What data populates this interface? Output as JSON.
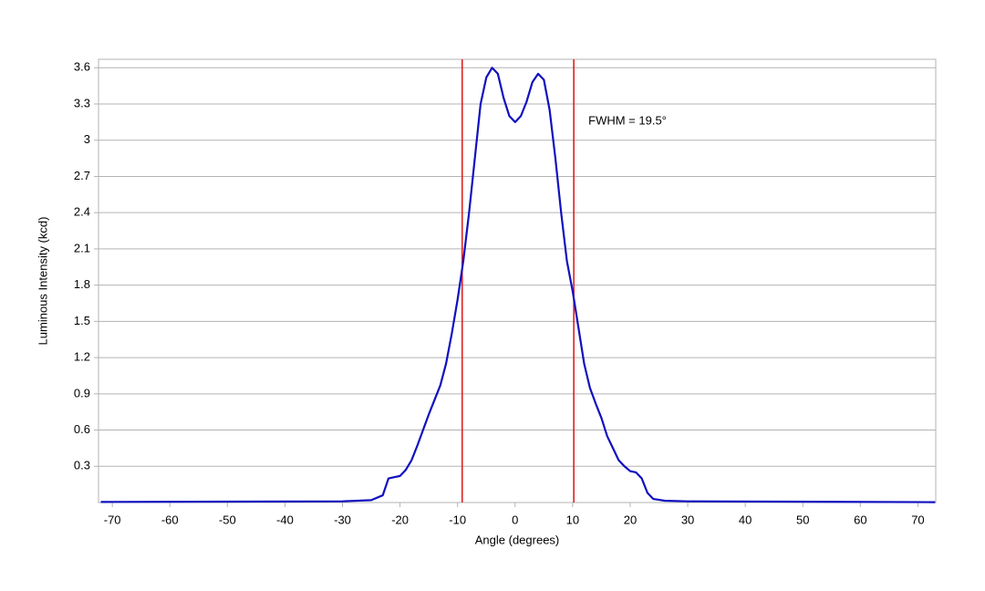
{
  "chart_data": {
    "type": "line",
    "xlabel": "Angle (degrees)",
    "ylabel": "Luminous Intensity (kcd)",
    "annotation": "FWHM = 19.5°",
    "vlines": [
      -9.2,
      10.2
    ],
    "vline_color": "#e02020",
    "xlim": [
      -72.4,
      73.1
    ],
    "ylim": [
      0,
      3.67
    ],
    "xticks": [
      -70,
      -60,
      -50,
      -40,
      -30,
      -20,
      -10,
      0,
      10,
      20,
      30,
      40,
      50,
      60,
      70
    ],
    "yticks": [
      0.3,
      0.6,
      0.9,
      1.2,
      1.5,
      1.8,
      2.1,
      2.4,
      2.7,
      3.0,
      3.3,
      3.6
    ],
    "grid": true,
    "series": [
      {
        "color": "#1010c0",
        "x": [
          -72,
          -30,
          -25,
          -23,
          -22,
          -21,
          -20,
          -19,
          -18,
          -17,
          -16,
          -15,
          -14,
          -13,
          -12,
          -11,
          -10,
          -9,
          -8,
          -7,
          -6,
          -5,
          -4,
          -3,
          -2,
          -1,
          0,
          1,
          2,
          3,
          4,
          5,
          6,
          7,
          8,
          9,
          10,
          11,
          12,
          13,
          14,
          15,
          16,
          17,
          18,
          19,
          20,
          21,
          22,
          23,
          24,
          26,
          30,
          73
        ],
        "values": [
          0.005,
          0.01,
          0.02,
          0.06,
          0.2,
          0.21,
          0.22,
          0.27,
          0.35,
          0.47,
          0.6,
          0.73,
          0.85,
          0.97,
          1.15,
          1.4,
          1.68,
          2.0,
          2.4,
          2.85,
          3.3,
          3.52,
          3.6,
          3.55,
          3.35,
          3.2,
          3.15,
          3.2,
          3.32,
          3.48,
          3.55,
          3.5,
          3.25,
          2.85,
          2.4,
          2.0,
          1.75,
          1.45,
          1.15,
          0.95,
          0.82,
          0.7,
          0.55,
          0.45,
          0.35,
          0.3,
          0.26,
          0.25,
          0.2,
          0.08,
          0.03,
          0.015,
          0.01,
          0.003
        ]
      }
    ]
  }
}
